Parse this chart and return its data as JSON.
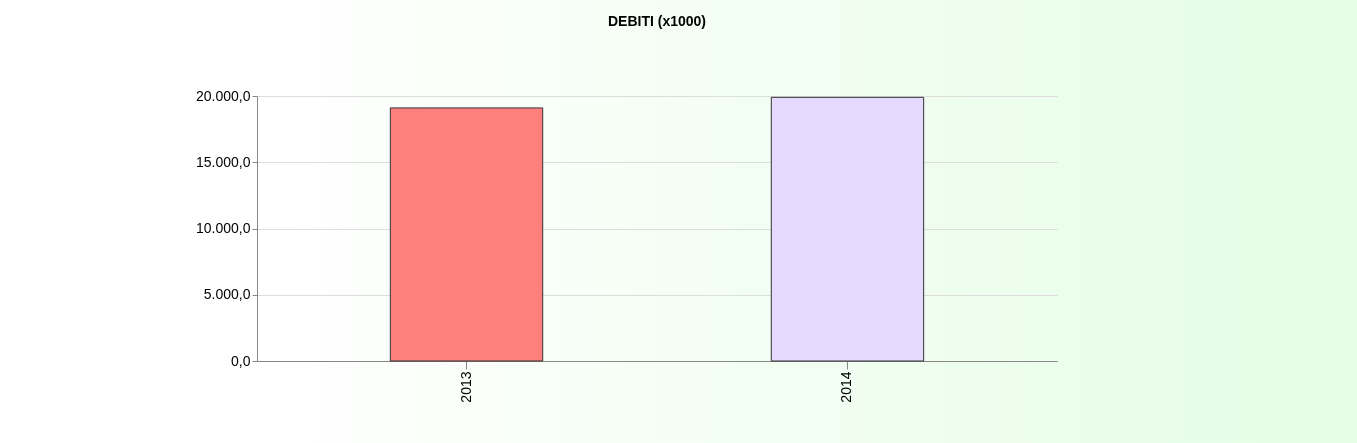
{
  "chart_data": {
    "type": "bar",
    "title": "DEBITI (x1000)",
    "categories": [
      "2013",
      "2014"
    ],
    "values": [
      19100,
      19900
    ],
    "colors": [
      "#ff7f7f",
      "#e6d9ff"
    ],
    "ylim": [
      0,
      20000
    ],
    "yticks": [
      {
        "value": 0,
        "label": "0,0"
      },
      {
        "value": 5000,
        "label": "5.000,0"
      },
      {
        "value": 10000,
        "label": "10.000,0"
      },
      {
        "value": 15000,
        "label": "15.000,0"
      },
      {
        "value": 20000,
        "label": "20.000,0"
      }
    ],
    "grid": "y"
  }
}
